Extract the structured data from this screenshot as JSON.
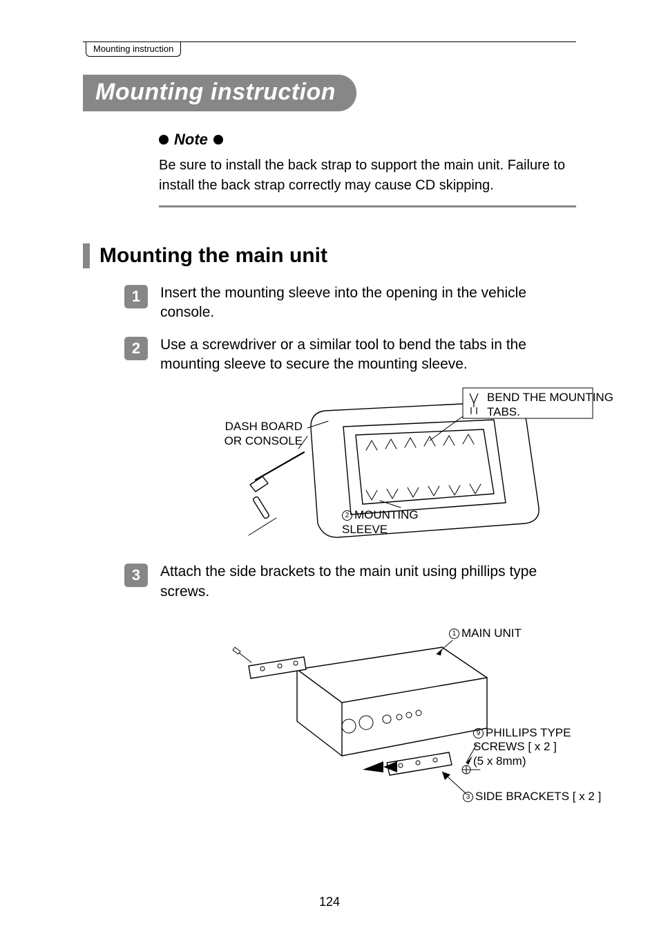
{
  "breadcrumb": "Mounting instruction",
  "title": "Mounting instruction",
  "note": {
    "heading": "Note",
    "body": "Be sure to install the back strap to support the main unit. Failure to install the back strap correctly may cause CD skipping."
  },
  "section_heading": "Mounting the main unit",
  "steps": [
    {
      "num": "1",
      "text": "Insert the mounting sleeve into the opening in the vehicle console."
    },
    {
      "num": "2",
      "text": "Use a screwdriver or a similar tool to bend the tabs in the mounting sleeve to secure the mounting sleeve."
    },
    {
      "num": "3",
      "text": "Attach the side brackets to the main unit using phillips type screws."
    }
  ],
  "diagram1": {
    "labels": {
      "dashboard": "DASH BOARD\nOR CONSOLE",
      "bend_tabs": "BEND THE MOUNTING\nTABS.",
      "mounting_sleeve": "MOUNTING\nSLEEVE",
      "mounting_sleeve_num": "2"
    },
    "stroke_color": "#000000",
    "stroke_width_main": 1.4,
    "stroke_width_thin": 1.0
  },
  "diagram2": {
    "labels": {
      "main_unit": "MAIN UNIT",
      "main_unit_num": "1",
      "phillips": "PHILLIPS TYPE\nSCREWS [ x 2 ]\n(5 x 8mm)",
      "phillips_num": "9",
      "side_brackets": "SIDE BRACKETS [ x 2 ]",
      "side_brackets_num": "3"
    },
    "stroke_color": "#000000",
    "stroke_width_main": 1.4,
    "stroke_width_thin": 1.0
  },
  "page_number": "124",
  "colors": {
    "gray": "#878787",
    "text": "#000000",
    "bg": "#ffffff"
  },
  "typography": {
    "title_fontsize": 34,
    "h2_fontsize": 30,
    "body_fontsize": 21,
    "note_body_fontsize": 20,
    "label_fontsize": 17,
    "breadcrumb_fontsize": 13
  }
}
